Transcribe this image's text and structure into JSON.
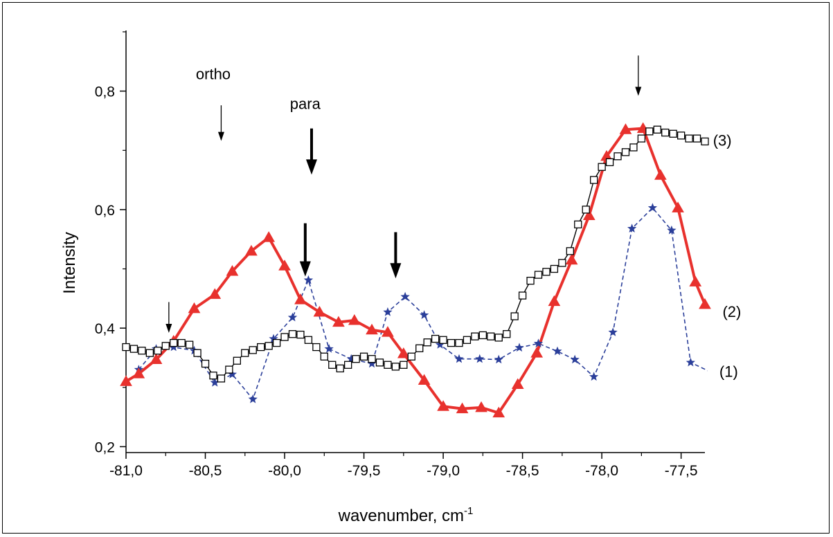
{
  "chart_data": {
    "type": "line",
    "title": "",
    "xlabel": "wavenumber, cm",
    "xlabel_sup": "-1",
    "ylabel": "Intensity",
    "xlim": [
      -81.0,
      -77.35
    ],
    "ylim": [
      0.19,
      0.9
    ],
    "x_ticks": [
      -81.0,
      -80.5,
      -80.0,
      -79.5,
      -79.0,
      -78.5,
      -78.0,
      -77.5
    ],
    "x_tick_labels": [
      "-81,0",
      "-80,5",
      "-80,0",
      "-79,5",
      "-79,0",
      "-78,5",
      "-78,0",
      "-77,5"
    ],
    "y_ticks": [
      0.2,
      0.4,
      0.6,
      0.8
    ],
    "y_tick_labels": [
      "0,2",
      "0,4",
      "0,6",
      "0,8"
    ],
    "grid": false,
    "series": [
      {
        "name": "(1)",
        "color": "#2b3f9a",
        "style": "dashed",
        "marker": "star",
        "x": [
          -80.92,
          -80.81,
          -80.7,
          -80.57,
          -80.44,
          -80.33,
          -80.2,
          -80.07,
          -79.95,
          -79.85,
          -79.72,
          -79.58,
          -79.45,
          -79.35,
          -79.24,
          -79.12,
          -79.02,
          -78.9,
          -78.77,
          -78.65,
          -78.52,
          -78.4,
          -78.28,
          -78.17,
          -78.05,
          -77.93,
          -77.81,
          -77.68,
          -77.56,
          -77.44,
          -77.33
        ],
        "values": [
          0.33,
          0.365,
          0.368,
          0.362,
          0.308,
          0.322,
          0.28,
          0.382,
          0.418,
          0.481,
          0.365,
          0.348,
          0.34,
          0.427,
          0.453,
          0.422,
          0.372,
          0.348,
          0.348,
          0.347,
          0.367,
          0.374,
          0.361,
          0.347,
          0.318,
          0.393,
          0.568,
          0.603,
          0.565,
          0.342,
          0.328
        ]
      },
      {
        "name": "(2)",
        "color": "#e8312d",
        "style": "solid",
        "marker": "triangle",
        "x": [
          -81.0,
          -80.92,
          -80.81,
          -80.7,
          -80.57,
          -80.44,
          -80.33,
          -80.21,
          -80.1,
          -80.0,
          -79.9,
          -79.78,
          -79.66,
          -79.56,
          -79.45,
          -79.35,
          -79.25,
          -79.12,
          -79.0,
          -78.88,
          -78.76,
          -78.65,
          -78.53,
          -78.41,
          -78.3,
          -78.19,
          -78.08,
          -77.97,
          -77.85,
          -77.74,
          -77.63,
          -77.52,
          -77.41,
          -77.35
        ],
        "values": [
          0.31,
          0.323,
          0.347,
          0.378,
          0.433,
          0.457,
          0.496,
          0.53,
          0.553,
          0.505,
          0.448,
          0.427,
          0.41,
          0.413,
          0.397,
          0.393,
          0.357,
          0.312,
          0.268,
          0.264,
          0.266,
          0.257,
          0.305,
          0.358,
          0.445,
          0.515,
          0.59,
          0.69,
          0.735,
          0.737,
          0.658,
          0.603,
          0.478,
          0.44
        ]
      },
      {
        "name": "(3)",
        "color": "#000000",
        "style": "solid",
        "marker": "square",
        "x": [
          -81.0,
          -80.95,
          -80.9,
          -80.85,
          -80.8,
          -80.75,
          -80.7,
          -80.65,
          -80.6,
          -80.55,
          -80.5,
          -80.45,
          -80.4,
          -80.35,
          -80.3,
          -80.25,
          -80.2,
          -80.15,
          -80.1,
          -80.05,
          -80.0,
          -79.95,
          -79.9,
          -79.85,
          -79.8,
          -79.75,
          -79.7,
          -79.65,
          -79.6,
          -79.55,
          -79.5,
          -79.45,
          -79.4,
          -79.35,
          -79.3,
          -79.25,
          -79.2,
          -79.15,
          -79.1,
          -79.05,
          -79.0,
          -78.95,
          -78.9,
          -78.85,
          -78.8,
          -78.75,
          -78.7,
          -78.65,
          -78.6,
          -78.55,
          -78.5,
          -78.45,
          -78.4,
          -78.35,
          -78.3,
          -78.25,
          -78.2,
          -78.15,
          -78.1,
          -78.05,
          -78.0,
          -77.95,
          -77.9,
          -77.85,
          -77.8,
          -77.75,
          -77.7,
          -77.65,
          -77.6,
          -77.55,
          -77.5,
          -77.45,
          -77.4,
          -77.35
        ],
        "values": [
          0.368,
          0.365,
          0.362,
          0.358,
          0.362,
          0.37,
          0.375,
          0.375,
          0.372,
          0.358,
          0.34,
          0.32,
          0.315,
          0.33,
          0.345,
          0.358,
          0.363,
          0.368,
          0.37,
          0.375,
          0.385,
          0.39,
          0.389,
          0.38,
          0.368,
          0.352,
          0.338,
          0.332,
          0.338,
          0.348,
          0.352,
          0.348,
          0.342,
          0.338,
          0.335,
          0.338,
          0.352,
          0.366,
          0.376,
          0.382,
          0.38,
          0.375,
          0.375,
          0.38,
          0.386,
          0.388,
          0.386,
          0.384,
          0.39,
          0.42,
          0.455,
          0.48,
          0.49,
          0.495,
          0.5,
          0.51,
          0.53,
          0.575,
          0.6,
          0.65,
          0.672,
          0.68,
          0.69,
          0.697,
          0.705,
          0.72,
          0.732,
          0.735,
          0.73,
          0.728,
          0.725,
          0.72,
          0.72,
          0.715
        ]
      }
    ],
    "annotations": [
      {
        "text": "ortho",
        "x": -80.45,
        "y": 0.82
      },
      {
        "text": "para",
        "x": -79.87,
        "y": 0.77
      }
    ],
    "arrows": [
      {
        "x": -80.73,
        "y_top": 0.444,
        "y_tip": 0.392,
        "weight": "thin"
      },
      {
        "x": -80.4,
        "y_top": 0.776,
        "y_tip": 0.716,
        "weight": "thin"
      },
      {
        "x": -79.83,
        "y_top": 0.737,
        "y_tip": 0.659,
        "weight": "bold"
      },
      {
        "x": -79.87,
        "y_top": 0.577,
        "y_tip": 0.487,
        "weight": "bold"
      },
      {
        "x": -79.3,
        "y_top": 0.562,
        "y_tip": 0.484,
        "weight": "bold"
      },
      {
        "x": -77.77,
        "y_top": 0.86,
        "y_tip": 0.792,
        "weight": "thin"
      }
    ],
    "series_labels": [
      {
        "text": "(1)",
        "x": -77.2,
        "y": 0.327
      },
      {
        "text": "(2)",
        "x": -77.18,
        "y": 0.428
      },
      {
        "text": "(3)",
        "x": -77.24,
        "y": 0.717
      }
    ]
  }
}
